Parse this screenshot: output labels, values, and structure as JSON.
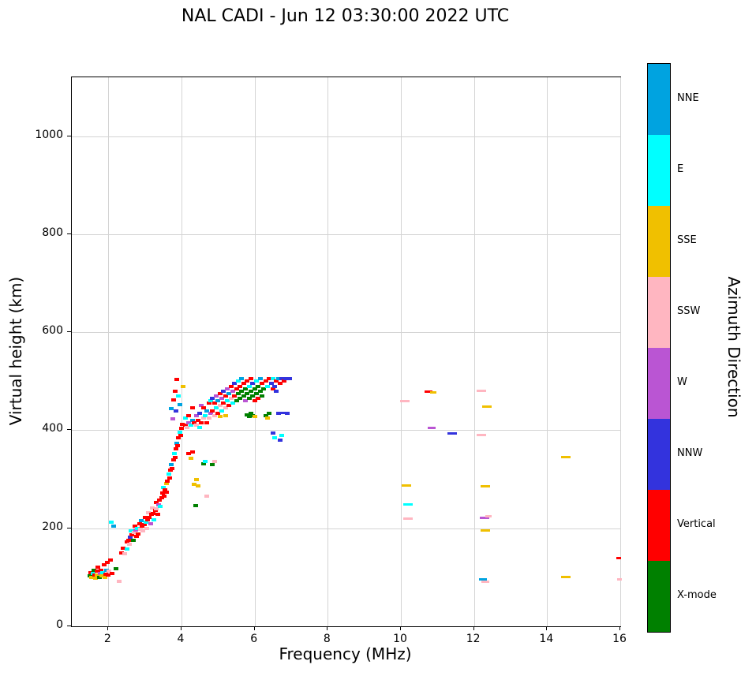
{
  "title": "NAL CADI - Jun 12 03:30:00 2022 UTC",
  "chart_data": {
    "type": "scatter",
    "title": "NAL CADI - Jun 12 03:30:00 2022 UTC",
    "xlabel": "Frequency (MHz)",
    "ylabel": "Virtual height (km)",
    "xlim": [
      1,
      16
    ],
    "ylim": [
      0,
      1120
    ],
    "x_ticks": [
      2,
      4,
      6,
      8,
      10,
      12,
      14,
      16
    ],
    "y_ticks": [
      0,
      200,
      400,
      600,
      800,
      1000
    ],
    "grid": true,
    "legend_position": "right-colorbar",
    "colorbar": {
      "label": "Azimuth Direction",
      "categories": [
        {
          "key": "NNE",
          "label": "NNE",
          "color": "#00a3e0"
        },
        {
          "key": "E",
          "label": "E",
          "color": "#00ffff"
        },
        {
          "key": "SSE",
          "label": "SSE",
          "color": "#f0c000"
        },
        {
          "key": "SSW",
          "label": "SSW",
          "color": "#ffb6c1"
        },
        {
          "key": "W",
          "label": "W",
          "color": "#ba55d3"
        },
        {
          "key": "NNW",
          "label": "NNW",
          "color": "#3333dd"
        },
        {
          "key": "Vertical",
          "label": "Vertical",
          "color": "#ff0000"
        },
        {
          "key": "X",
          "label": "X-mode",
          "color": "#008000"
        }
      ]
    },
    "points_format": [
      "frequency_mhz",
      "virtual_height_km",
      "azimuth_key",
      "dash_width_px_optional"
    ],
    "points": [
      [
        1.5,
        103,
        "X"
      ],
      [
        1.52,
        110,
        "Vertical"
      ],
      [
        1.55,
        100,
        "SSE"
      ],
      [
        1.58,
        108,
        "E"
      ],
      [
        1.6,
        115,
        "X"
      ],
      [
        1.62,
        105,
        "Vertical"
      ],
      [
        1.65,
        98,
        "SSE"
      ],
      [
        1.68,
        112,
        "Vertical"
      ],
      [
        1.7,
        104,
        "SSE"
      ],
      [
        1.72,
        120,
        "Vertical"
      ],
      [
        1.75,
        100,
        "X"
      ],
      [
        1.78,
        108,
        "W"
      ],
      [
        1.8,
        115,
        "Vertical"
      ],
      [
        1.82,
        103,
        "SSE"
      ],
      [
        1.85,
        110,
        "E"
      ],
      [
        1.88,
        125,
        "Vertical"
      ],
      [
        1.9,
        100,
        "SSE"
      ],
      [
        1.92,
        107,
        "Vertical"
      ],
      [
        1.95,
        115,
        "NNE"
      ],
      [
        1.98,
        130,
        "Vertical"
      ],
      [
        2.0,
        105,
        "Vertical"
      ],
      [
        2.02,
        112,
        "SSW"
      ],
      [
        2.05,
        135,
        "Vertical"
      ],
      [
        2.1,
        108,
        "Vertical"
      ],
      [
        2.08,
        212,
        "E"
      ],
      [
        2.15,
        205,
        "NNE"
      ],
      [
        2.2,
        118,
        "X"
      ],
      [
        2.3,
        92,
        "SSW"
      ],
      [
        2.35,
        150,
        "Vertical"
      ],
      [
        2.4,
        160,
        "Vertical"
      ],
      [
        2.45,
        148,
        "SSW"
      ],
      [
        2.5,
        158,
        "E"
      ],
      [
        2.52,
        172,
        "Vertical"
      ],
      [
        2.55,
        176,
        "Vertical"
      ],
      [
        2.58,
        168,
        "SSW"
      ],
      [
        2.6,
        182,
        "NNW"
      ],
      [
        2.62,
        194,
        "E"
      ],
      [
        2.65,
        186,
        "Vertical"
      ],
      [
        2.68,
        175,
        "X"
      ],
      [
        2.7,
        192,
        "SSW"
      ],
      [
        2.72,
        205,
        "Vertical"
      ],
      [
        2.75,
        196,
        "W"
      ],
      [
        2.78,
        184,
        "Vertical"
      ],
      [
        2.8,
        200,
        "E"
      ],
      [
        2.82,
        188,
        "Vertical"
      ],
      [
        2.85,
        210,
        "Vertical"
      ],
      [
        2.88,
        198,
        "SSW"
      ],
      [
        2.9,
        215,
        "NNE"
      ],
      [
        2.92,
        204,
        "Vertical"
      ],
      [
        2.95,
        194,
        "SSW"
      ],
      [
        2.98,
        208,
        "Vertical"
      ],
      [
        3.0,
        222,
        "Vertical"
      ],
      [
        3.02,
        212,
        "E"
      ],
      [
        3.05,
        200,
        "SSW"
      ],
      [
        3.08,
        218,
        "Vertical"
      ],
      [
        3.1,
        232,
        "SSW"
      ],
      [
        3.12,
        222,
        "Vertical"
      ],
      [
        3.15,
        210,
        "W"
      ],
      [
        3.18,
        228,
        "Vertical"
      ],
      [
        3.2,
        242,
        "SSW"
      ],
      [
        3.22,
        230,
        "Vertical"
      ],
      [
        3.25,
        218,
        "E"
      ],
      [
        3.28,
        236,
        "Vertical"
      ],
      [
        3.3,
        252,
        "Vertical"
      ],
      [
        3.32,
        240,
        "SSW"
      ],
      [
        3.35,
        228,
        "Vertical"
      ],
      [
        3.38,
        248,
        "W"
      ],
      [
        3.4,
        258,
        "Vertical"
      ],
      [
        3.42,
        244,
        "E"
      ],
      [
        3.45,
        262,
        "Vertical"
      ],
      [
        3.48,
        272,
        "Vertical"
      ],
      [
        3.5,
        284,
        "E"
      ],
      [
        3.52,
        266,
        "Vertical"
      ],
      [
        3.55,
        278,
        "Vertical"
      ],
      [
        3.58,
        292,
        "SSE"
      ],
      [
        3.6,
        274,
        "Vertical"
      ],
      [
        3.62,
        296,
        "Vertical"
      ],
      [
        3.65,
        310,
        "E"
      ],
      [
        3.68,
        302,
        "Vertical"
      ],
      [
        3.7,
        318,
        "Vertical"
      ],
      [
        3.72,
        330,
        "NNE"
      ],
      [
        3.75,
        322,
        "Vertical"
      ],
      [
        3.78,
        340,
        "Vertical"
      ],
      [
        3.8,
        352,
        "E"
      ],
      [
        3.82,
        344,
        "Vertical"
      ],
      [
        3.85,
        362,
        "Vertical"
      ],
      [
        3.88,
        374,
        "NNE"
      ],
      [
        3.9,
        368,
        "Vertical"
      ],
      [
        3.92,
        384,
        "Vertical"
      ],
      [
        3.95,
        396,
        "E"
      ],
      [
        3.98,
        390,
        "Vertical"
      ],
      [
        4.0,
        404,
        "Vertical"
      ],
      [
        4.02,
        412,
        "Vertical"
      ],
      [
        3.72,
        444,
        "NNE"
      ],
      [
        3.78,
        462,
        "Vertical"
      ],
      [
        3.82,
        480,
        "Vertical"
      ],
      [
        3.86,
        504,
        "Vertical"
      ],
      [
        3.92,
        470,
        "E"
      ],
      [
        3.96,
        452,
        "NNE"
      ],
      [
        4.05,
        490,
        "SSE"
      ],
      [
        3.76,
        424,
        "W"
      ],
      [
        3.84,
        440,
        "NNW"
      ],
      [
        4.2,
        352,
        "Vertical"
      ],
      [
        4.25,
        342,
        "SSE"
      ],
      [
        4.3,
        356,
        "Vertical"
      ],
      [
        4.35,
        290,
        "SSE"
      ],
      [
        4.4,
        300,
        "SSE"
      ],
      [
        4.45,
        286,
        "SSE"
      ],
      [
        4.38,
        246,
        "X"
      ],
      [
        4.7,
        266,
        "SSW"
      ],
      [
        4.6,
        332,
        "X"
      ],
      [
        4.65,
        336,
        "E"
      ],
      [
        4.85,
        330,
        "X"
      ],
      [
        4.9,
        336,
        "SSW"
      ],
      [
        4.1,
        410,
        "Vertical"
      ],
      [
        4.1,
        425,
        "E"
      ],
      [
        4.15,
        405,
        "SSW"
      ],
      [
        4.2,
        415,
        "W"
      ],
      [
        4.2,
        430,
        "Vertical"
      ],
      [
        4.25,
        410,
        "E"
      ],
      [
        4.3,
        420,
        "NNE"
      ],
      [
        4.3,
        445,
        "Vertical"
      ],
      [
        4.35,
        415,
        "Vertical"
      ],
      [
        4.4,
        410,
        "SSW"
      ],
      [
        4.4,
        430,
        "W"
      ],
      [
        4.45,
        420,
        "Vertical"
      ],
      [
        4.5,
        405,
        "E"
      ],
      [
        4.5,
        435,
        "NNW"
      ],
      [
        4.55,
        415,
        "Vertical"
      ],
      [
        4.55,
        450,
        "W"
      ],
      [
        4.6,
        425,
        "SSW"
      ],
      [
        4.6,
        445,
        "Vertical"
      ],
      [
        4.65,
        430,
        "E"
      ],
      [
        4.7,
        415,
        "Vertical"
      ],
      [
        4.7,
        440,
        "NNE"
      ],
      [
        4.75,
        425,
        "SSW"
      ],
      [
        4.75,
        455,
        "Vertical"
      ],
      [
        4.8,
        435,
        "W"
      ],
      [
        4.8,
        460,
        "E"
      ],
      [
        4.85,
        440,
        "Vertical"
      ],
      [
        4.85,
        465,
        "NNW"
      ],
      [
        4.9,
        430,
        "SSW"
      ],
      [
        4.9,
        455,
        "Vertical"
      ],
      [
        4.95,
        445,
        "E"
      ],
      [
        4.95,
        470,
        "W"
      ],
      [
        5.0,
        435,
        "Vertical"
      ],
      [
        5.0,
        460,
        "NNE"
      ],
      [
        5.05,
        450,
        "SSW"
      ],
      [
        5.05,
        475,
        "Vertical"
      ],
      [
        5.05,
        428,
        "SSE"
      ],
      [
        5.1,
        440,
        "E"
      ],
      [
        5.1,
        465,
        "W"
      ],
      [
        5.15,
        455,
        "Vertical"
      ],
      [
        5.15,
        480,
        "NNW"
      ],
      [
        5.2,
        445,
        "SSW"
      ],
      [
        5.2,
        470,
        "Vertical"
      ],
      [
        5.2,
        430,
        "SSE"
      ],
      [
        5.25,
        460,
        "E"
      ],
      [
        5.25,
        485,
        "W"
      ],
      [
        5.3,
        450,
        "Vertical"
      ],
      [
        5.3,
        475,
        "NNE"
      ],
      [
        5.35,
        465,
        "SSW"
      ],
      [
        5.35,
        490,
        "Vertical"
      ],
      [
        5.4,
        455,
        "E"
      ],
      [
        5.4,
        480,
        "W"
      ],
      [
        5.45,
        470,
        "Vertical"
      ],
      [
        5.45,
        495,
        "NNW"
      ],
      [
        5.5,
        460,
        "X"
      ],
      [
        5.5,
        485,
        "Vertical"
      ],
      [
        5.55,
        475,
        "X"
      ],
      [
        5.55,
        500,
        "E"
      ],
      [
        5.6,
        465,
        "X"
      ],
      [
        5.6,
        490,
        "Vertical"
      ],
      [
        5.65,
        480,
        "X"
      ],
      [
        5.65,
        505,
        "NNE"
      ],
      [
        5.7,
        470,
        "X"
      ],
      [
        5.7,
        495,
        "Vertical"
      ],
      [
        5.75,
        485,
        "X"
      ],
      [
        5.75,
        460,
        "W"
      ],
      [
        5.8,
        475,
        "X"
      ],
      [
        5.8,
        500,
        "Vertical"
      ],
      [
        5.8,
        432,
        "X"
      ],
      [
        5.85,
        465,
        "X"
      ],
      [
        5.85,
        490,
        "E"
      ],
      [
        5.85,
        428,
        "X"
      ],
      [
        5.9,
        480,
        "X"
      ],
      [
        5.9,
        505,
        "Vertical"
      ],
      [
        5.9,
        435,
        "X"
      ],
      [
        5.95,
        470,
        "X"
      ],
      [
        5.95,
        495,
        "NNW"
      ],
      [
        5.95,
        430,
        "X"
      ],
      [
        6.0,
        485,
        "X"
      ],
      [
        6.0,
        460,
        "Vertical"
      ],
      [
        6.0,
        428,
        "SSE"
      ],
      [
        6.05,
        475,
        "X"
      ],
      [
        6.05,
        500,
        "E"
      ],
      [
        6.1,
        490,
        "X"
      ],
      [
        6.1,
        465,
        "Vertical"
      ],
      [
        6.15,
        480,
        "X"
      ],
      [
        6.15,
        505,
        "NNE"
      ],
      [
        6.2,
        470,
        "X"
      ],
      [
        6.2,
        495,
        "Vertical"
      ],
      [
        6.25,
        485,
        "X"
      ],
      [
        6.3,
        430,
        "X"
      ],
      [
        6.3,
        500,
        "Vertical"
      ],
      [
        6.35,
        425,
        "SSE"
      ],
      [
        6.35,
        490,
        "E"
      ],
      [
        6.4,
        435,
        "X"
      ],
      [
        6.4,
        505,
        "Vertical"
      ],
      [
        6.45,
        495,
        "NNW"
      ],
      [
        6.5,
        485,
        "Vertical"
      ],
      [
        6.5,
        505,
        "E"
      ],
      [
        6.5,
        395,
        "NNW"
      ],
      [
        6.55,
        490,
        "NNW"
      ],
      [
        6.55,
        385,
        "E"
      ],
      [
        6.6,
        500,
        "Vertical"
      ],
      [
        6.6,
        480,
        "NNW"
      ],
      [
        6.65,
        505,
        "NNE"
      ],
      [
        6.65,
        435,
        "NNW"
      ],
      [
        6.7,
        495,
        "Vertical"
      ],
      [
        6.7,
        380,
        "NNW"
      ],
      [
        6.75,
        505,
        "NNW"
      ],
      [
        6.75,
        390,
        "E"
      ],
      [
        6.8,
        500,
        "Vertical"
      ],
      [
        6.8,
        435,
        "NNW",
        10
      ],
      [
        6.85,
        505,
        "NNW"
      ],
      [
        6.9,
        435,
        "NNW"
      ],
      [
        6.95,
        505,
        "NNW"
      ],
      [
        10.1,
        460,
        "SSW",
        12
      ],
      [
        10.15,
        288,
        "SSE",
        12
      ],
      [
        10.2,
        248,
        "E",
        12
      ],
      [
        10.2,
        220,
        "SSW",
        12
      ],
      [
        10.75,
        478,
        "Vertical",
        10
      ],
      [
        10.88,
        477,
        "SSE",
        8
      ],
      [
        10.85,
        405,
        "W",
        10
      ],
      [
        11.4,
        393,
        "NNW",
        12
      ],
      [
        12.2,
        480,
        "SSW",
        12
      ],
      [
        12.35,
        448,
        "SSE",
        12
      ],
      [
        12.2,
        390,
        "SSW",
        12
      ],
      [
        12.3,
        285,
        "SSE",
        12
      ],
      [
        12.28,
        222,
        "W",
        12
      ],
      [
        12.4,
        224,
        "SSW",
        8
      ],
      [
        12.3,
        195,
        "SSE",
        12
      ],
      [
        12.25,
        95,
        "NNE",
        10
      ],
      [
        12.3,
        91,
        "SSW",
        10
      ],
      [
        14.5,
        345,
        "SSE",
        12
      ],
      [
        14.5,
        100,
        "SSE",
        12
      ],
      [
        15.95,
        140,
        "Vertical",
        6
      ],
      [
        15.97,
        95,
        "SSW",
        6
      ]
    ]
  }
}
